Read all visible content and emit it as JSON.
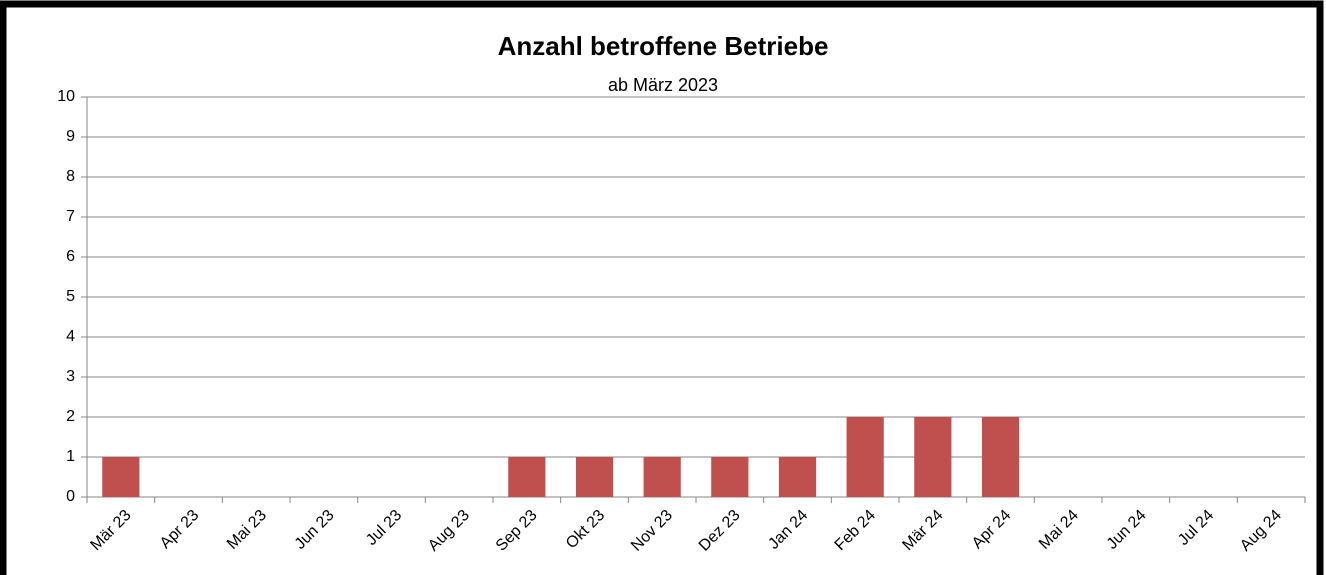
{
  "chart_data": {
    "type": "bar",
    "title": "Anzahl betroffene Betriebe",
    "subtitle": "ab März 2023",
    "categories": [
      "Mär 23",
      "Apr 23",
      "Mai 23",
      "Jun 23",
      "Jul 23",
      "Aug 23",
      "Sep 23",
      "Okt 23",
      "Nov 23",
      "Dez 23",
      "Jan 24",
      "Feb 24",
      "Mär 24",
      "Apr 24",
      "Mai 24",
      "Jun 24",
      "Jul 24",
      "Aug 24"
    ],
    "values": [
      1,
      0,
      0,
      0,
      0,
      0,
      1,
      1,
      1,
      1,
      1,
      2,
      2,
      2,
      0,
      0,
      0,
      0
    ],
    "color": "#c0504d",
    "ylim": [
      0,
      10
    ],
    "yticks": [
      0,
      1,
      2,
      3,
      4,
      5,
      6,
      7,
      8,
      9,
      10
    ],
    "grid": true
  }
}
